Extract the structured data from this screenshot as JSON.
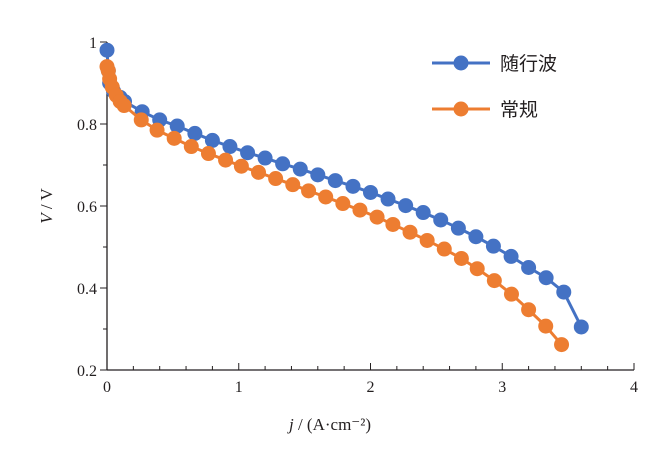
{
  "chart_data": {
    "type": "line",
    "title": "",
    "xlabel_italic": "j",
    "xlabel_rest": " / (A·cm⁻²)",
    "ylabel_italic": "V",
    "ylabel_rest": " / V",
    "xlim": [
      0,
      4
    ],
    "ylim": [
      0.2,
      1.0
    ],
    "xticks": [
      0,
      1,
      2,
      3,
      4
    ],
    "yticks": [
      0.2,
      0.4,
      0.6,
      0.8,
      1
    ],
    "ytick_labels": [
      "0.2",
      "0.4",
      "0.6",
      "0.8",
      "1"
    ],
    "legend_position": "top-right",
    "series": [
      {
        "name": "随行波",
        "color": "#4472c4",
        "x": [
          0,
          0.01,
          0.02,
          0.05,
          0.1,
          0.133,
          0.267,
          0.4,
          0.533,
          0.667,
          0.8,
          0.933,
          1.067,
          1.2,
          1.333,
          1.467,
          1.6,
          1.733,
          1.867,
          2.0,
          2.133,
          2.267,
          2.4,
          2.533,
          2.667,
          2.8,
          2.933,
          3.067,
          3.2,
          3.333,
          3.467,
          3.6
        ],
        "y": [
          0.98,
          0.93,
          0.9,
          0.88,
          0.865,
          0.855,
          0.83,
          0.81,
          0.795,
          0.777,
          0.76,
          0.745,
          0.73,
          0.717,
          0.703,
          0.69,
          0.676,
          0.662,
          0.648,
          0.633,
          0.617,
          0.601,
          0.584,
          0.566,
          0.546,
          0.525,
          0.502,
          0.477,
          0.45,
          0.425,
          0.39,
          0.305
        ]
      },
      {
        "name": "常规",
        "color": "#ed7d31",
        "x": [
          0,
          0.01,
          0.02,
          0.04,
          0.07,
          0.1,
          0.13,
          0.26,
          0.38,
          0.51,
          0.64,
          0.77,
          0.9,
          1.02,
          1.15,
          1.28,
          1.41,
          1.53,
          1.66,
          1.79,
          1.92,
          2.05,
          2.17,
          2.3,
          2.43,
          2.56,
          2.69,
          2.81,
          2.94,
          3.07,
          3.2,
          3.33,
          3.45
        ],
        "y": [
          0.94,
          0.93,
          0.91,
          0.89,
          0.87,
          0.855,
          0.845,
          0.81,
          0.785,
          0.765,
          0.745,
          0.728,
          0.712,
          0.697,
          0.682,
          0.667,
          0.652,
          0.637,
          0.622,
          0.606,
          0.59,
          0.573,
          0.555,
          0.536,
          0.516,
          0.495,
          0.472,
          0.447,
          0.418,
          0.385,
          0.347,
          0.307,
          0.262
        ]
      }
    ]
  }
}
